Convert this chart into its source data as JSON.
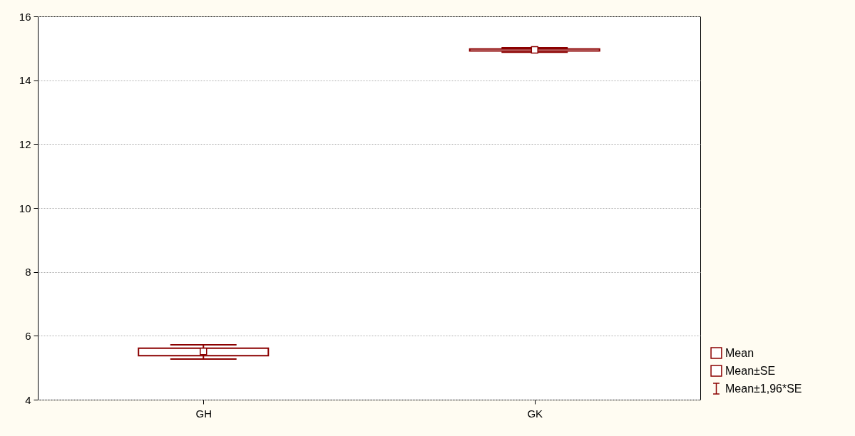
{
  "chart_data": {
    "type": "scatter",
    "categories": [
      "GH",
      "GK"
    ],
    "ylim": [
      4,
      16
    ],
    "yticks": [
      4,
      6,
      8,
      10,
      12,
      14,
      16
    ],
    "grid": "y",
    "legend": "bottom right",
    "series": [
      {
        "name": "Mean",
        "marker": "square",
        "color": "#8b0000",
        "values": [
          5.51,
          14.95
        ],
        "errors": [
          [
            5.27,
            5.72
          ],
          [
            14.88,
            15.02
          ]
        ]
      },
      {
        "name": "Mean±SE",
        "type": "bar",
        "color": "#8b0000",
        "base": [
          5.38,
          14.92
        ],
        "values": [
          0.23,
          0.06
        ]
      }
    ],
    "annotations": [
      "Mean±1,96*SE"
    ]
  }
}
